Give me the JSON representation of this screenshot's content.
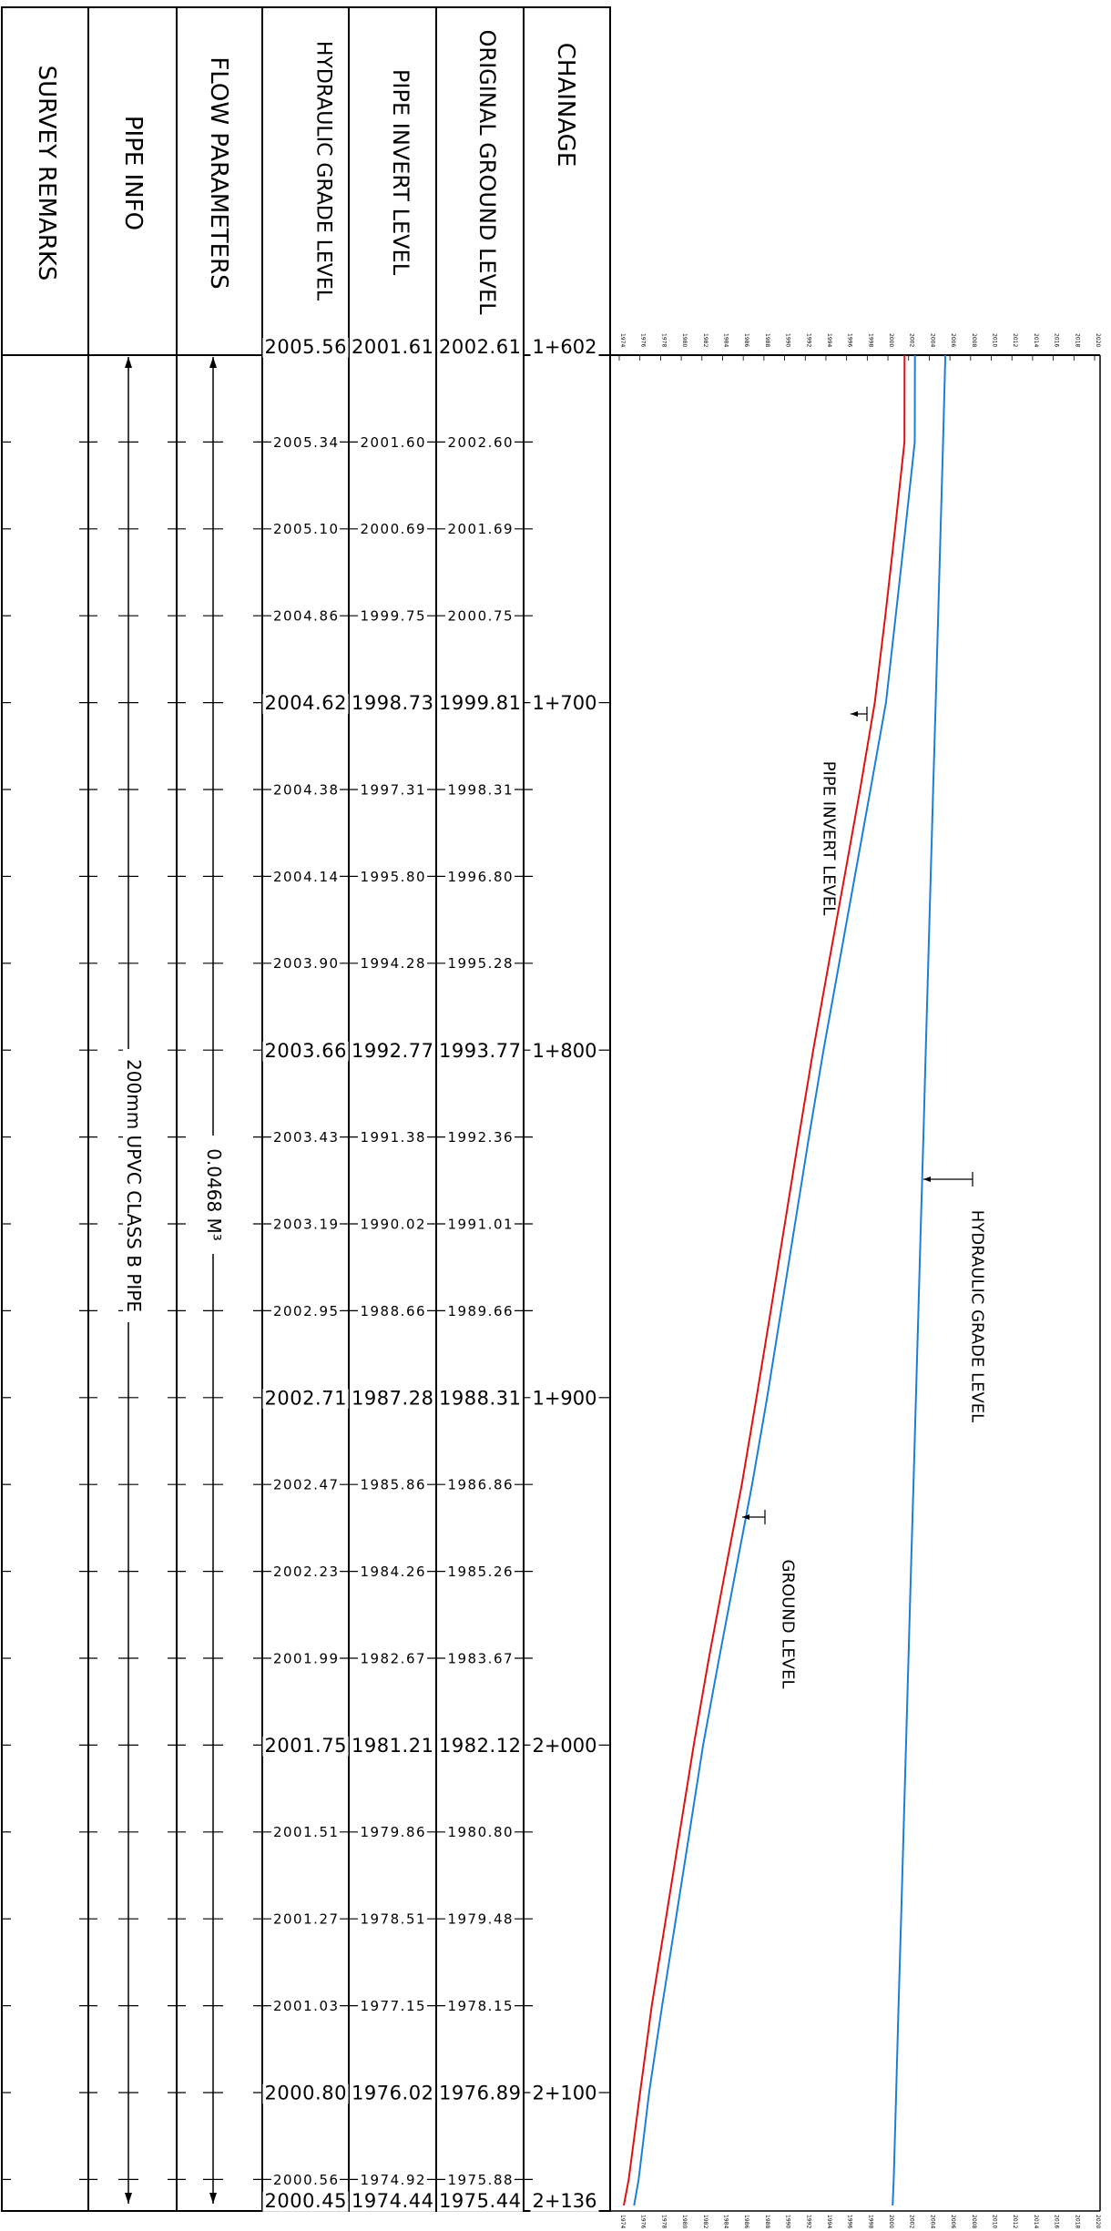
{
  "headers": {
    "survey_remarks": "SURVEY REMARKS",
    "pipe_info": "PIPE INFO",
    "flow_parameters": "FLOW PARAMETERS",
    "hgl": "HYDRAULIC GRADE LEVEL",
    "pipe_invert": "PIPE INVERT LEVEL",
    "ground": "ORIGINAL GROUND LEVEL",
    "chainage": "CHAINAGE"
  },
  "pipe_info_text": "200mm UPVC CLASS B PIPE",
  "flow_text": "0.0468 M³",
  "rows": [
    {
      "hgl": "2005.56",
      "inv": "2001.61",
      "gl": "2002.61",
      "ch": "1+602",
      "major": true
    },
    {
      "hgl": "2005.34",
      "inv": "2001.60",
      "gl": "2002.60",
      "ch": "",
      "major": false
    },
    {
      "hgl": "2005.10",
      "inv": "2000.69",
      "gl": "2001.69",
      "ch": "",
      "major": false
    },
    {
      "hgl": "2004.86",
      "inv": "1999.75",
      "gl": "2000.75",
      "ch": "",
      "major": false
    },
    {
      "hgl": "2004.62",
      "inv": "1998.73",
      "gl": "1999.81",
      "ch": "1+700",
      "major": true
    },
    {
      "hgl": "2004.38",
      "inv": "1997.31",
      "gl": "1998.31",
      "ch": "",
      "major": false
    },
    {
      "hgl": "2004.14",
      "inv": "1995.80",
      "gl": "1996.80",
      "ch": "",
      "major": false
    },
    {
      "hgl": "2003.90",
      "inv": "1994.28",
      "gl": "1995.28",
      "ch": "",
      "major": false
    },
    {
      "hgl": "2003.66",
      "inv": "1992.77",
      "gl": "1993.77",
      "ch": "1+800",
      "major": true
    },
    {
      "hgl": "2003.43",
      "inv": "1991.38",
      "gl": "1992.36",
      "ch": "",
      "major": false
    },
    {
      "hgl": "2003.19",
      "inv": "1990.02",
      "gl": "1991.01",
      "ch": "",
      "major": false
    },
    {
      "hgl": "2002.95",
      "inv": "1988.66",
      "gl": "1989.66",
      "ch": "",
      "major": false
    },
    {
      "hgl": "2002.71",
      "inv": "1987.28",
      "gl": "1988.31",
      "ch": "1+900",
      "major": true
    },
    {
      "hgl": "2002.47",
      "inv": "1985.86",
      "gl": "1986.86",
      "ch": "",
      "major": false
    },
    {
      "hgl": "2002.23",
      "inv": "1984.26",
      "gl": "1985.26",
      "ch": "",
      "major": false
    },
    {
      "hgl": "2001.99",
      "inv": "1982.67",
      "gl": "1983.67",
      "ch": "",
      "major": false
    },
    {
      "hgl": "2001.75",
      "inv": "1981.21",
      "gl": "1982.12",
      "ch": "2+000",
      "major": true
    },
    {
      "hgl": "2001.51",
      "inv": "1979.86",
      "gl": "1980.80",
      "ch": "",
      "major": false
    },
    {
      "hgl": "2001.27",
      "inv": "1978.51",
      "gl": "1979.48",
      "ch": "",
      "major": false
    },
    {
      "hgl": "2001.03",
      "inv": "1977.15",
      "gl": "1978.15",
      "ch": "",
      "major": false
    },
    {
      "hgl": "2000.80",
      "inv": "1976.02",
      "gl": "1976.89",
      "ch": "2+100",
      "major": true
    },
    {
      "hgl": "2000.56",
      "inv": "1974.92",
      "gl": "1975.88",
      "ch": "",
      "major": false
    },
    {
      "hgl": "2000.45",
      "inv": "1974.44",
      "gl": "1975.44",
      "ch": "2+136",
      "major": true
    }
  ],
  "plot": {
    "axis_ticks": [
      "1974",
      "1976",
      "1978",
      "1980",
      "1982",
      "1984",
      "1986",
      "1988",
      "1990",
      "1992",
      "1994",
      "1996",
      "1998",
      "2000",
      "2002",
      "2004",
      "2006",
      "2008",
      "2010",
      "2012",
      "2014",
      "2016",
      "2018",
      "2020"
    ],
    "labels": {
      "invert": "PIPE INVERT LEVEL",
      "hgl": "HYDRAULIC GRADE LEVEL",
      "ground": "GROUND LEVEL"
    },
    "colors": {
      "ground": "#1a7fd6",
      "invert": "#e01010",
      "hgl": "#1a7fd6"
    }
  }
}
